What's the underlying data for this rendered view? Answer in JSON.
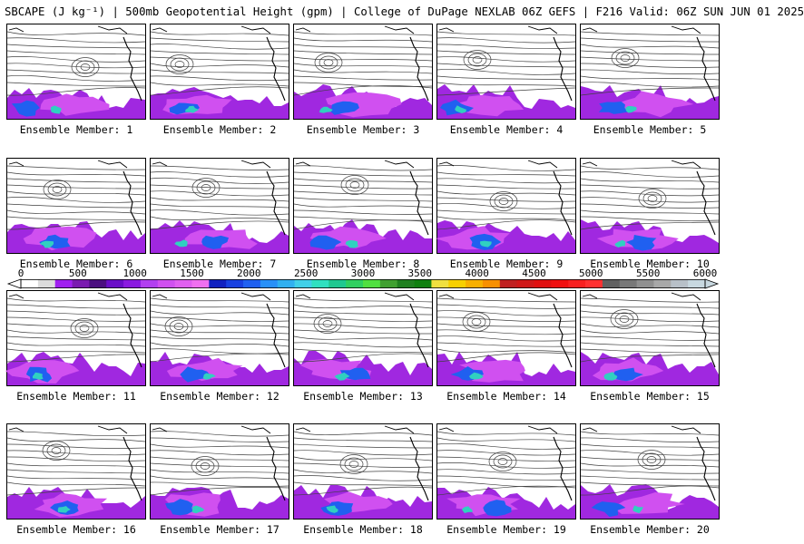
{
  "title": "SBCAPE (J kg⁻¹) | 500mb Geopotential Height (gpm) | College of DuPage NEXLAB 06Z GEFS | F216 Valid: 06Z SUN JUN 01 2025",
  "member_label_prefix": "Ensemble Member: ",
  "members": [
    {
      "id": "1",
      "label": "Ensemble Member: 1"
    },
    {
      "id": "2",
      "label": "Ensemble Member: 2"
    },
    {
      "id": "3",
      "label": "Ensemble Member: 3"
    },
    {
      "id": "4",
      "label": "Ensemble Member: 4"
    },
    {
      "id": "5",
      "label": "Ensemble Member: 5"
    },
    {
      "id": "6",
      "label": "Ensemble Member: 6"
    },
    {
      "id": "7",
      "label": "Ensemble Member: 7"
    },
    {
      "id": "8",
      "label": "Ensemble Member: 8"
    },
    {
      "id": "9",
      "label": "Ensemble Member: 9"
    },
    {
      "id": "10",
      "label": "Ensemble Member: 10"
    },
    {
      "id": "11",
      "label": "Ensemble Member: 11"
    },
    {
      "id": "12",
      "label": "Ensemble Member: 12"
    },
    {
      "id": "13",
      "label": "Ensemble Member: 13"
    },
    {
      "id": "14",
      "label": "Ensemble Member: 14"
    },
    {
      "id": "15",
      "label": "Ensemble Member: 15"
    },
    {
      "id": "16",
      "label": "Ensemble Member: 16"
    },
    {
      "id": "17",
      "label": "Ensemble Member: 17"
    },
    {
      "id": "18",
      "label": "Ensemble Member: 18"
    },
    {
      "id": "19",
      "label": "Ensemble Member: 19"
    },
    {
      "id": "20",
      "label": "Ensemble Member: 20"
    }
  ],
  "colorbar": {
    "tick_labels": [
      "0",
      "500",
      "1000",
      "1500",
      "2000",
      "2500",
      "3000",
      "3500",
      "4000",
      "4500",
      "5000",
      "5500",
      "6000"
    ],
    "min": 0,
    "max": 6000,
    "colors": [
      "#ffffff",
      "#dcdcdc",
      "#a020f0",
      "#7a1bb0",
      "#4b0f80",
      "#6a0ec8",
      "#8a1be0",
      "#b23ff0",
      "#d050f0",
      "#e060f0",
      "#f070f0",
      "#1020c0",
      "#1840e0",
      "#2060f0",
      "#2890f8",
      "#30b0f0",
      "#40d0e8",
      "#30e0c0",
      "#20c890",
      "#30d060",
      "#50e040",
      "#40a030",
      "#208020",
      "#108010",
      "#f0e040",
      "#f8d000",
      "#f8b000",
      "#f89000",
      "#c02020",
      "#d01818",
      "#e01010",
      "#f01010",
      "#f82020",
      "#ff3030",
      "#606060",
      "#787878",
      "#909090",
      "#a8a8a8",
      "#b8c0c8",
      "#c8d8e0"
    ]
  }
}
